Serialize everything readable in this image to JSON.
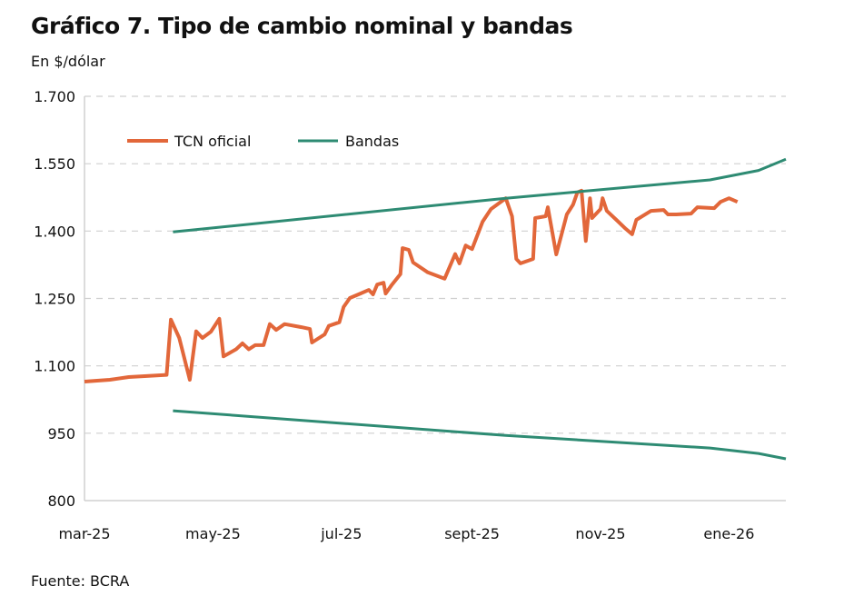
{
  "chart_data": {
    "type": "line",
    "title": "Gráfico 7. Tipo de cambio nominal y bandas",
    "ylabel": "En $/dólar",
    "source": "Fuente: BCRA",
    "xlabel": "",
    "x_unit": "days since 2025-03-01",
    "xlim": [
      0,
      333
    ],
    "ylim": [
      800,
      1700
    ],
    "yticks": [
      800,
      950,
      1100,
      1250,
      1400,
      1550,
      1700
    ],
    "ytick_labels": [
      "800",
      "950",
      "1.100",
      "1.250",
      "1.400",
      "1.550",
      "1.700"
    ],
    "xticks": [
      0,
      61,
      122,
      184,
      245,
      306
    ],
    "xtick_labels": [
      "mar-25",
      "may-25",
      "jul-25",
      "sept-25",
      "nov-25",
      "ene-26"
    ],
    "grid": "horizontal dashed",
    "legend_position": "top-left",
    "legend": [
      "TCN oficial",
      "Bandas"
    ],
    "colors": {
      "tcn": "#E2673A",
      "bandas": "#2E8B73"
    },
    "series": [
      {
        "name": "TCN oficial",
        "x": [
          0,
          12,
          21,
          39,
          41,
          45,
          50,
          53,
          56,
          60,
          64,
          66,
          72,
          75,
          78,
          81,
          85,
          88,
          91,
          95,
          103,
          107,
          108,
          114,
          116,
          121,
          123,
          126,
          131,
          135,
          137,
          139,
          142,
          143,
          146,
          150,
          151,
          154,
          156,
          163,
          171,
          176,
          178,
          181,
          184,
          189,
          193,
          200,
          203,
          205,
          207,
          213,
          214,
          219,
          220,
          224,
          229,
          232,
          234,
          236,
          238,
          240,
          241,
          245,
          246,
          248,
          253,
          257,
          260,
          262,
          269,
          275,
          277,
          281,
          288,
          291,
          299,
          302,
          306,
          310
        ],
        "y": [
          1065,
          1069,
          1075,
          1080,
          1203,
          1162,
          1069,
          1177,
          1162,
          1176,
          1205,
          1121,
          1137,
          1150,
          1137,
          1146,
          1146,
          1193,
          1180,
          1193,
          1186,
          1182,
          1152,
          1170,
          1189,
          1197,
          1231,
          1251,
          1261,
          1269,
          1259,
          1281,
          1285,
          1261,
          1281,
          1304,
          1362,
          1358,
          1330,
          1308,
          1294,
          1349,
          1328,
          1368,
          1360,
          1421,
          1449,
          1473,
          1433,
          1338,
          1328,
          1338,
          1429,
          1433,
          1453,
          1348,
          1437,
          1459,
          1486,
          1490,
          1378,
          1473,
          1429,
          1449,
          1473,
          1445,
          1423,
          1405,
          1393,
          1425,
          1445,
          1447,
          1437,
          1437,
          1439,
          1453,
          1451,
          1465,
          1473,
          1465
        ]
      },
      {
        "name": "Bandas superior",
        "x": [
          42,
          200,
          297,
          320,
          333
        ],
        "y": [
          1398,
          1473,
          1514,
          1535,
          1560
        ]
      },
      {
        "name": "Bandas inferior",
        "x": [
          42,
          200,
          297,
          320,
          333
        ],
        "y": [
          1000,
          945,
          917,
          905,
          893
        ]
      }
    ]
  }
}
